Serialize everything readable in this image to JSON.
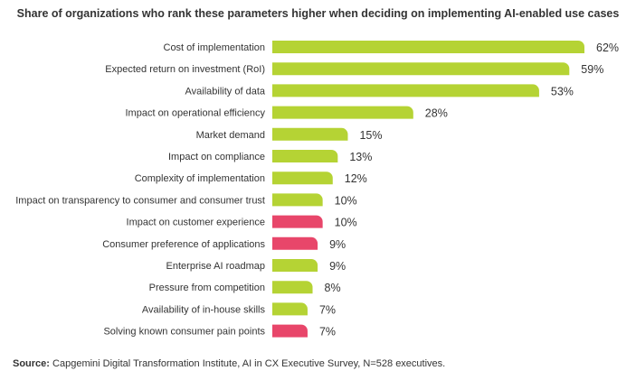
{
  "title": "Share of organizations who rank these parameters higher when deciding on implementing AI-enabled use cases",
  "source": {
    "label": "Source:",
    "text": " Capgemini Digital Transformation Institute, AI in CX Executive Survey, N=528 executives."
  },
  "colors": {
    "green": "#b5d334",
    "red": "#e8466a"
  },
  "chart_data": {
    "type": "bar",
    "orientation": "horizontal",
    "xlim": [
      0,
      62
    ],
    "categories": [
      "Cost of implementation",
      "Expected return on investment (RoI)",
      "Availability of data",
      "Impact on operational efficiency",
      "Market demand",
      "Impact on compliance",
      "Complexity of implementation",
      "Impact on transparency to consumer and consumer trust",
      "Impact on customer experience",
      "Consumer preference of applications",
      "Enterprise AI roadmap",
      "Pressure from competition",
      "Availability of in-house skills",
      "Solving known consumer pain points"
    ],
    "values": [
      62,
      59,
      53,
      28,
      15,
      13,
      12,
      10,
      10,
      9,
      9,
      8,
      7,
      7
    ],
    "value_labels": [
      "62%",
      "59%",
      "53%",
      "28%",
      "15%",
      "13%",
      "12%",
      "10%",
      "10%",
      "9%",
      "9%",
      "8%",
      "7%",
      "7%"
    ],
    "bar_colors": [
      "green",
      "green",
      "green",
      "green",
      "green",
      "green",
      "green",
      "green",
      "red",
      "red",
      "green",
      "green",
      "green",
      "red"
    ]
  }
}
